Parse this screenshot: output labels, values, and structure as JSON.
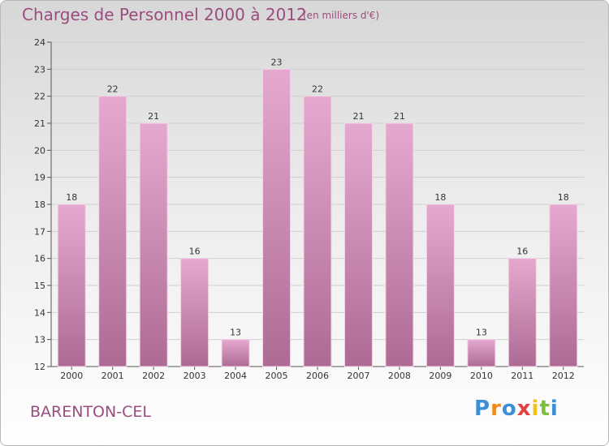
{
  "title": "Charges de Personnel 2000 à 2012",
  "subtitle": "(en milliers d'€)",
  "commune": "BARENTON-CEL",
  "logo": {
    "letters": [
      "P",
      "r",
      "o",
      "x",
      "i",
      "t",
      "i"
    ],
    "colors": [
      "#3b8fd6",
      "#f08a1c",
      "#3b8fd6",
      "#e23e3e",
      "#f2c21b",
      "#7cbf3a",
      "#3b8fd6"
    ]
  },
  "colors": {
    "bar": "#c97fac",
    "bar_light": "#e5a9cf",
    "bar_dark": "#ad6b94",
    "title": "#9a4c7f"
  },
  "chart_data": {
    "type": "bar",
    "categories": [
      "2000",
      "2001",
      "2002",
      "2003",
      "2004",
      "2005",
      "2006",
      "2007",
      "2008",
      "2009",
      "2010",
      "2011",
      "2012"
    ],
    "values": [
      18,
      22,
      21,
      16,
      13,
      23,
      22,
      21,
      21,
      18,
      13,
      16,
      18
    ],
    "ylim": [
      12,
      24
    ],
    "yticks": [
      12,
      13,
      14,
      15,
      16,
      17,
      18,
      19,
      20,
      21,
      22,
      23,
      24
    ],
    "title": "Charges de Personnel 2000 à 2012",
    "xlabel": "",
    "ylabel": "",
    "grid": true
  }
}
